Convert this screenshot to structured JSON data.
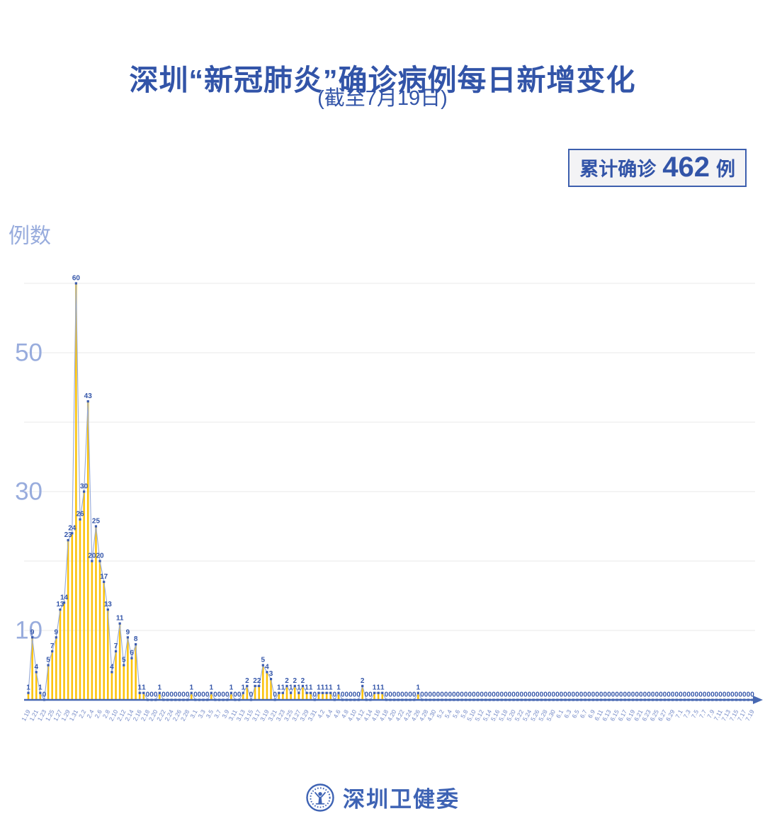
{
  "header": {
    "title": "深圳“新冠肺炎”确诊病例每日新增变化",
    "subtitle": "(截至7月19日)",
    "badge": {
      "prefix": "累计确诊",
      "value": "462",
      "suffix": "例"
    }
  },
  "footer": {
    "brand": "深圳卫健委"
  },
  "colors": {
    "accent": "#3254A8",
    "bar": "#FBC30D",
    "line": "#96A9D6",
    "marker": "#3B5BAD",
    "value_label": "#3355A9",
    "axis": "#4768B2",
    "grid": "#E8E8EA",
    "y_tick": "#98ACDD",
    "x_tick": "#7288C6"
  },
  "chart_data": {
    "type": "bar",
    "line_overlay": true,
    "title": "深圳“新冠肺炎”确诊病例每日新增变化(截至7月19日)",
    "xlabel": "",
    "ylabel": "例数",
    "ylim": [
      0,
      60
    ],
    "grid": "horizontal",
    "legend": "none",
    "total_label": "累计确诊462例",
    "total": 462,
    "yticks_labeled": [
      10,
      30,
      50
    ],
    "gridlines": [
      10,
      20,
      30,
      40,
      50,
      60
    ],
    "x_tick_every": 2,
    "categories": [
      "1.19",
      "1.20",
      "1.21",
      "1.22",
      "1.23",
      "1.24",
      "1.25",
      "1.26",
      "1.27",
      "1.28",
      "1.29",
      "1.30",
      "1.31",
      "2.1",
      "2.2",
      "2.3",
      "2.4",
      "2.5",
      "2.6",
      "2.7",
      "2.8",
      "2.9",
      "2.10",
      "2.11",
      "2.12",
      "2.13",
      "2.14",
      "2.15",
      "2.16",
      "2.17",
      "2.18",
      "2.19",
      "2.20",
      "2.21",
      "2.22",
      "2.23",
      "2.24",
      "2.25",
      "2.26",
      "2.27",
      "2.28",
      "2.29",
      "3.1",
      "3.2",
      "3.3",
      "3.4",
      "3.5",
      "3.6",
      "3.7",
      "3.8",
      "3.9",
      "3.10",
      "3.11",
      "3.12",
      "3.13",
      "3.14",
      "3.15",
      "3.16",
      "3.17",
      "3.18",
      "3.19",
      "3.20",
      "3.21",
      "3.22",
      "3.23",
      "3.24",
      "3.25",
      "3.26",
      "3.27",
      "3.28",
      "3.29",
      "3.30",
      "3.31",
      "4.1",
      "4.2",
      "4.3",
      "4.4",
      "4.5",
      "4.6",
      "4.7",
      "4.8",
      "4.9",
      "4.10",
      "4.11",
      "4.12",
      "4.13",
      "4.14",
      "4.15",
      "4.16",
      "4.17",
      "4.18",
      "4.19",
      "4.20",
      "4.21",
      "4.22",
      "4.23",
      "4.24",
      "4.25",
      "4.26",
      "4.27",
      "4.28",
      "4.29",
      "4.30",
      "5.1",
      "5.2",
      "5.3",
      "5.4",
      "5.5",
      "5.6",
      "5.7",
      "5.8",
      "5.9",
      "5.10",
      "5.11",
      "5.12",
      "5.13",
      "5.14",
      "5.15",
      "5.16",
      "5.17",
      "5.18",
      "5.19",
      "5.20",
      "5.21",
      "5.22",
      "5.23",
      "5.24",
      "5.25",
      "5.26",
      "5.27",
      "5.28",
      "5.29",
      "5.30",
      "5.31",
      "6.1",
      "6.2",
      "6.3",
      "6.4",
      "6.5",
      "6.6",
      "6.7",
      "6.8",
      "6.9",
      "6.10",
      "6.11",
      "6.12",
      "6.13",
      "6.14",
      "6.15",
      "6.16",
      "6.17",
      "6.18",
      "6.19",
      "6.20",
      "6.21",
      "6.22",
      "6.23",
      "6.24",
      "6.25",
      "6.26",
      "6.27",
      "6.28",
      "6.29",
      "6.30",
      "7.1",
      "7.2",
      "7.3",
      "7.4",
      "7.5",
      "7.6",
      "7.7",
      "7.8",
      "7.9",
      "7.10",
      "7.11",
      "7.12",
      "7.13",
      "7.14",
      "7.15",
      "7.16",
      "7.17",
      "7.18",
      "7.19"
    ],
    "values": [
      1,
      9,
      4,
      1,
      0,
      5,
      7,
      9,
      13,
      14,
      23,
      24,
      60,
      26,
      30,
      43,
      20,
      25,
      20,
      17,
      13,
      4,
      7,
      11,
      5,
      9,
      6,
      8,
      1,
      1,
      0,
      0,
      0,
      1,
      0,
      0,
      0,
      0,
      0,
      0,
      0,
      1,
      0,
      0,
      0,
      0,
      1,
      0,
      0,
      0,
      0,
      1,
      0,
      0,
      1,
      2,
      0,
      2,
      2,
      5,
      4,
      3,
      0,
      1,
      1,
      2,
      1,
      2,
      1,
      2,
      1,
      1,
      0,
      1,
      1,
      1,
      1,
      0,
      1,
      0,
      0,
      0,
      0,
      0,
      2,
      0,
      0,
      1,
      1,
      1,
      0,
      0,
      0,
      0,
      0,
      0,
      0,
      0,
      1,
      0,
      0,
      0,
      0,
      0,
      0,
      0,
      0,
      0,
      0,
      0,
      0,
      0,
      0,
      0,
      0,
      0,
      0,
      0,
      0,
      0,
      0,
      0,
      0,
      0,
      0,
      0,
      0,
      0,
      0,
      0,
      0,
      0,
      0,
      0,
      0,
      0,
      0,
      0,
      0,
      0,
      0,
      0,
      0,
      0,
      0,
      0,
      0,
      0,
      0,
      0,
      0,
      0,
      0,
      0,
      0,
      0,
      0,
      0,
      0,
      0,
      0,
      0,
      0,
      0,
      0,
      0,
      0,
      0,
      0,
      0,
      0,
      0,
      0,
      0,
      0,
      0,
      0,
      0,
      0,
      0,
      0,
      0,
      0
    ]
  }
}
